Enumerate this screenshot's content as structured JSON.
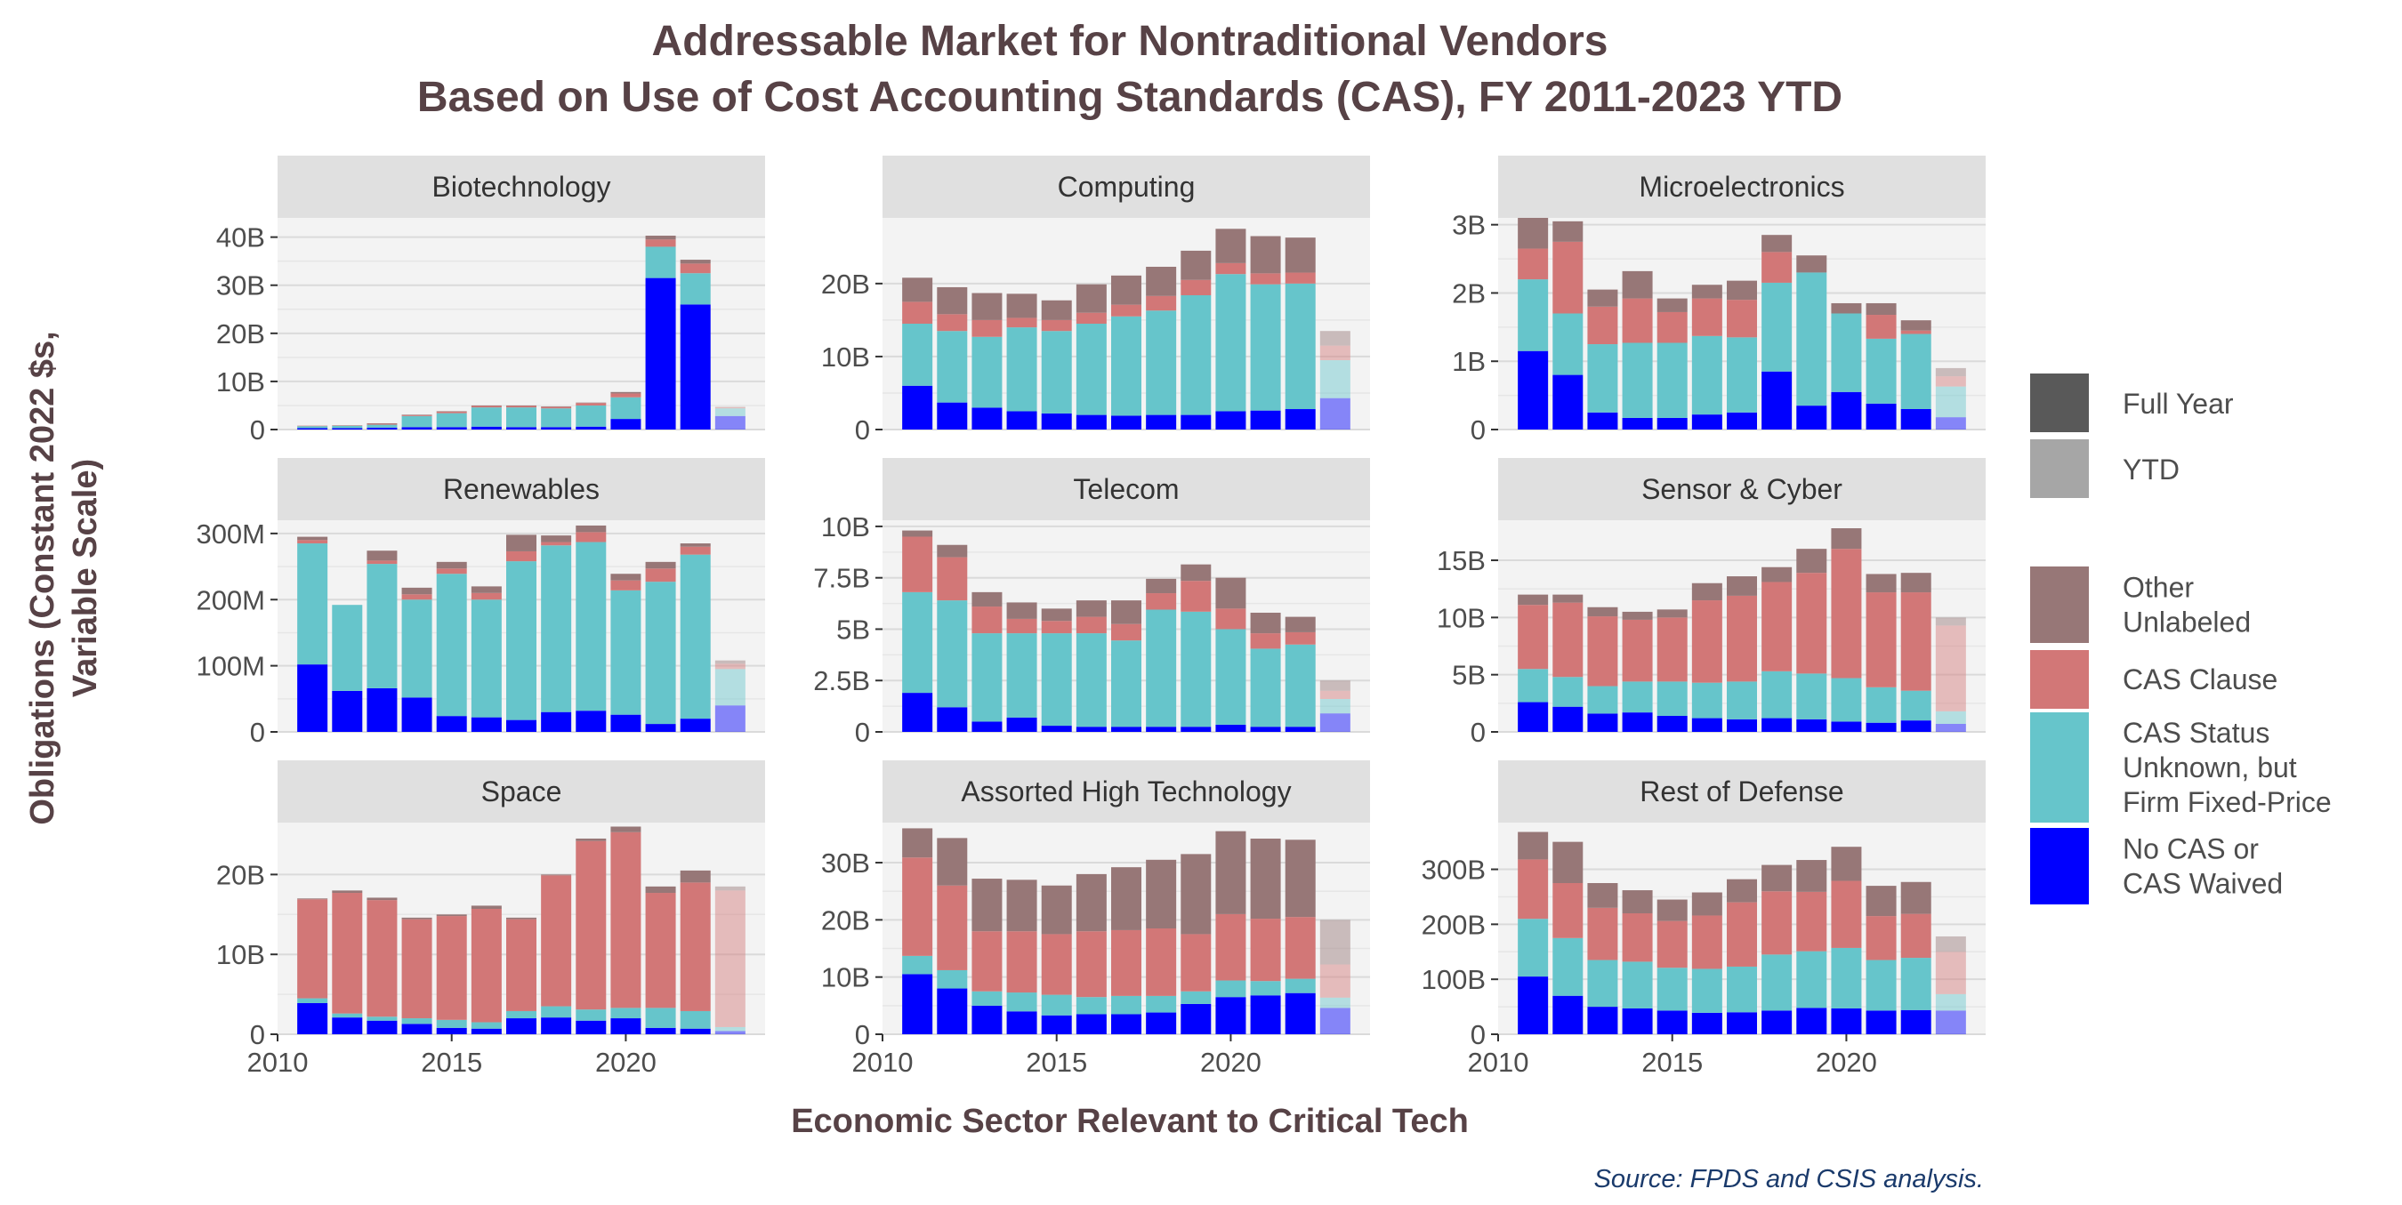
{
  "chart_data": {
    "type": "bar",
    "stacked": true,
    "title_line1": "Addressable Market for Nontraditional Vendors",
    "title_line2": "Based on Use of Cost Accounting Standards (CAS), FY 2011-2023 YTD",
    "xlabel": "Economic Sector Relevant to Critical Tech",
    "ylabel_line1": "Obligations (Constant 2022 $s,",
    "ylabel_line2": "Variable Scale)",
    "source": "Source: FPDS and CSIS analysis.",
    "x": [
      2011,
      2012,
      2013,
      2014,
      2015,
      2016,
      2017,
      2018,
      2019,
      2020,
      2021,
      2022,
      2023
    ],
    "x_ticks": [
      2010,
      2015,
      2020
    ],
    "x_tick_labels": [
      "2010",
      "2015",
      "2020"
    ],
    "xlim": [
      2010,
      2024
    ],
    "ytd_year": 2023,
    "grid": true,
    "legend_position": "right",
    "series_keys": [
      "nocas",
      "unknown",
      "clause",
      "other"
    ],
    "colors": {
      "nocas": "#0000FF",
      "unknown": "#66C5CB",
      "clause": "#D27777",
      "other": "#977777",
      "full_year_swatch": "#595959",
      "ytd_swatch": "#A6A6A6",
      "strip_bg": "#E0E0E0",
      "panel_bg": "#F3F3F3",
      "title_text": "#574246",
      "source_text": "#1A3A6B"
    },
    "legend": {
      "alpha_items": [
        "Full Year",
        "YTD"
      ],
      "fill_items": [
        {
          "key": "other",
          "lines": [
            "Other",
            "Unlabeled"
          ]
        },
        {
          "key": "clause",
          "lines": [
            "CAS Clause"
          ]
        },
        {
          "key": "unknown",
          "lines": [
            "CAS Status",
            "Unknown, but",
            "Firm Fixed-Price"
          ]
        },
        {
          "key": "nocas",
          "lines": [
            "No CAS or",
            "CAS Waived"
          ]
        }
      ]
    },
    "panels": [
      {
        "name": "Biotechnology",
        "ylim": [
          0,
          44
        ],
        "y_ticks": [
          0,
          10,
          20,
          30,
          40
        ],
        "y_tick_labels": [
          "0",
          "10B",
          "20B",
          "30B",
          "40B"
        ],
        "series": {
          "nocas": [
            0.3,
            0.3,
            0.4,
            0.5,
            0.5,
            0.6,
            0.5,
            0.5,
            0.6,
            2.2,
            31.5,
            26,
            2.8
          ],
          "unknown": [
            0.4,
            0.5,
            0.6,
            2.3,
            2.9,
            4,
            4.1,
            3.9,
            4.4,
            4.5,
            6.5,
            6.5,
            1.6
          ],
          "clause": [
            0.1,
            0.1,
            0.2,
            0.2,
            0.3,
            0.3,
            0.3,
            0.3,
            0.5,
            0.8,
            1.5,
            2,
            0.2
          ],
          "other": [
            0,
            0,
            0.1,
            0.1,
            0.1,
            0.1,
            0.1,
            0.1,
            0.1,
            0.3,
            0.8,
            0.8,
            0.1
          ]
        }
      },
      {
        "name": "Computing",
        "ylim": [
          0,
          29
        ],
        "y_ticks": [
          0,
          10,
          20
        ],
        "y_tick_labels": [
          "0",
          "10B",
          "20B"
        ],
        "series": {
          "nocas": [
            6,
            3.7,
            3,
            2.5,
            2.2,
            2,
            1.9,
            2,
            2,
            2.5,
            2.6,
            2.8,
            4.3
          ],
          "unknown": [
            8.5,
            9.8,
            9.7,
            11.5,
            11.3,
            12.5,
            13.6,
            14.3,
            16.4,
            18.8,
            17.3,
            17.2,
            5.2
          ],
          "clause": [
            3,
            2.3,
            2.3,
            1.3,
            1.5,
            1.5,
            1.6,
            2,
            2.1,
            1.5,
            1.5,
            1.5,
            2
          ],
          "other": [
            3.3,
            3.7,
            3.7,
            3.3,
            2.7,
            3.9,
            4,
            4,
            4,
            4.7,
            5.1,
            4.8,
            2
          ]
        }
      },
      {
        "name": "Microelectronics",
        "ylim": [
          0,
          3.1
        ],
        "y_ticks": [
          0,
          1,
          2,
          3
        ],
        "y_tick_labels": [
          "0",
          "1B",
          "2B",
          "3B"
        ],
        "series": {
          "nocas": [
            1.15,
            0.8,
            0.25,
            0.17,
            0.17,
            0.22,
            0.25,
            0.85,
            0.35,
            0.55,
            0.38,
            0.3,
            0.18
          ],
          "unknown": [
            1.05,
            0.9,
            1,
            1.1,
            1.1,
            1.15,
            1.1,
            1.3,
            1.95,
            1.15,
            0.95,
            1.1,
            0.45
          ],
          "clause": [
            0.45,
            1.05,
            0.55,
            0.65,
            0.45,
            0.55,
            0.55,
            0.45,
            0,
            0,
            0.35,
            0.05,
            0.15
          ],
          "other": [
            0.45,
            0.3,
            0.25,
            0.4,
            0.2,
            0.2,
            0.28,
            0.25,
            0.25,
            0.15,
            0.17,
            0.15,
            0.12
          ]
        }
      },
      {
        "name": "Renewables",
        "ylim": [
          0,
          320
        ],
        "y_ticks": [
          0,
          100,
          200,
          300
        ],
        "y_tick_labels": [
          "0",
          "100M",
          "200M",
          "300M"
        ],
        "series": {
          "nocas": [
            102,
            62,
            66,
            52,
            24,
            22,
            18,
            30,
            32,
            26,
            12,
            20,
            40
          ],
          "unknown": [
            183,
            130,
            188,
            148,
            215,
            178,
            240,
            252,
            255,
            188,
            215,
            248,
            55
          ],
          "clause": [
            5,
            0,
            5,
            8,
            8,
            10,
            15,
            5,
            15,
            15,
            20,
            12,
            8
          ],
          "other": [
            5,
            0,
            15,
            10,
            10,
            10,
            25,
            10,
            10,
            10,
            10,
            5,
            5
          ]
        }
      },
      {
        "name": "Telecom",
        "ylim": [
          0,
          10.3
        ],
        "y_ticks": [
          0,
          2.5,
          5,
          7.5,
          10
        ],
        "y_tick_labels": [
          "0",
          "2.5B",
          "5B",
          "7.5B",
          "10B"
        ],
        "series": {
          "nocas": [
            1.9,
            1.2,
            0.5,
            0.7,
            0.3,
            0.25,
            0.25,
            0.25,
            0.25,
            0.35,
            0.25,
            0.25,
            0.9
          ],
          "unknown": [
            4.9,
            5.2,
            4.3,
            4.1,
            4.5,
            4.55,
            4.2,
            5.7,
            5.6,
            4.65,
            3.8,
            4,
            0.7
          ],
          "clause": [
            2.7,
            2.1,
            1.3,
            0.7,
            0.6,
            0.8,
            0.8,
            0.8,
            1.5,
            1,
            0.75,
            0.6,
            0.4
          ],
          "other": [
            0.3,
            0.6,
            0.7,
            0.8,
            0.6,
            0.8,
            1.15,
            0.7,
            0.8,
            1.5,
            1,
            0.75,
            0.5
          ]
        }
      },
      {
        "name": "Sensor & Cyber",
        "ylim": [
          0,
          18.5
        ],
        "y_ticks": [
          0,
          5,
          10,
          15
        ],
        "y_tick_labels": [
          "0",
          "5B",
          "10B",
          "15B"
        ],
        "series": {
          "nocas": [
            2.6,
            2.2,
            1.6,
            1.7,
            1.4,
            1.2,
            1.1,
            1.2,
            1.1,
            0.9,
            0.8,
            1,
            0.7
          ],
          "unknown": [
            2.9,
            2.6,
            2.4,
            2.7,
            3,
            3.1,
            3.3,
            4.1,
            4,
            3.8,
            3.1,
            2.6,
            1.1
          ],
          "clause": [
            5.6,
            6.5,
            6.1,
            5.4,
            5.6,
            7.2,
            7.5,
            7.8,
            8.8,
            11.3,
            8.3,
            8.6,
            7.5
          ],
          "other": [
            0.9,
            0.7,
            0.8,
            0.7,
            0.7,
            1.5,
            1.7,
            1.3,
            2.1,
            1.8,
            1.6,
            1.7,
            0.7
          ]
        }
      },
      {
        "name": "Space",
        "ylim": [
          0,
          26.5
        ],
        "y_ticks": [
          0,
          10,
          20
        ],
        "y_tick_labels": [
          "0",
          "10B",
          "20B"
        ],
        "series": {
          "nocas": [
            3.9,
            2.1,
            1.7,
            1.3,
            0.8,
            0.7,
            2,
            2.1,
            1.7,
            2,
            0.8,
            0.7,
            0.4
          ],
          "unknown": [
            0.6,
            0.5,
            0.5,
            0.7,
            1,
            0.8,
            0.9,
            1.4,
            1.4,
            1.3,
            2.5,
            2.2,
            0.5
          ],
          "clause": [
            12.4,
            15.1,
            14.6,
            12.4,
            13,
            14.2,
            11.5,
            16.4,
            21.1,
            22,
            14.4,
            16.1,
            17.1
          ],
          "other": [
            0.1,
            0.3,
            0.3,
            0.2,
            0.2,
            0.4,
            0.2,
            0.1,
            0.3,
            0.7,
            0.8,
            1.5,
            0.5
          ]
        }
      },
      {
        "name": "Assorted High Technology",
        "ylim": [
          0,
          37
        ],
        "y_ticks": [
          0,
          10,
          20,
          30
        ],
        "y_tick_labels": [
          "0",
          "10B",
          "20B",
          "30B"
        ],
        "series": {
          "nocas": [
            10.5,
            8,
            5,
            4,
            3.3,
            3.5,
            3.5,
            3.8,
            5.3,
            6.5,
            6.8,
            7.2,
            4.6
          ],
          "unknown": [
            3.2,
            3.2,
            2.5,
            3.3,
            3.6,
            3,
            3.2,
            2.9,
            2.2,
            2.9,
            2.5,
            2.5,
            1.8
          ],
          "clause": [
            17.2,
            14.8,
            10.5,
            10.7,
            10.6,
            11.5,
            11.5,
            11.8,
            10,
            11.6,
            10.9,
            10.8,
            5.8
          ],
          "other": [
            5.1,
            8.3,
            9.2,
            9,
            8.5,
            10,
            11,
            12,
            14,
            14.5,
            14,
            13.5,
            7.8
          ]
        }
      },
      {
        "name": "Rest of Defense",
        "ylim": [
          0,
          385
        ],
        "y_ticks": [
          0,
          100,
          200,
          300
        ],
        "y_tick_labels": [
          "0",
          "100B",
          "200B",
          "300B"
        ],
        "series": {
          "nocas": [
            105,
            70,
            50,
            47,
            43,
            39,
            40,
            43,
            48,
            47,
            43,
            44,
            43
          ],
          "unknown": [
            105,
            105,
            85,
            85,
            78,
            80,
            83,
            102,
            103,
            110,
            92,
            95,
            30
          ],
          "clause": [
            108,
            100,
            95,
            88,
            85,
            97,
            117,
            115,
            108,
            122,
            80,
            80,
            77
          ],
          "other": [
            50,
            75,
            45,
            42,
            39,
            42,
            42,
            48,
            58,
            62,
            55,
            58,
            28
          ]
        }
      }
    ]
  }
}
